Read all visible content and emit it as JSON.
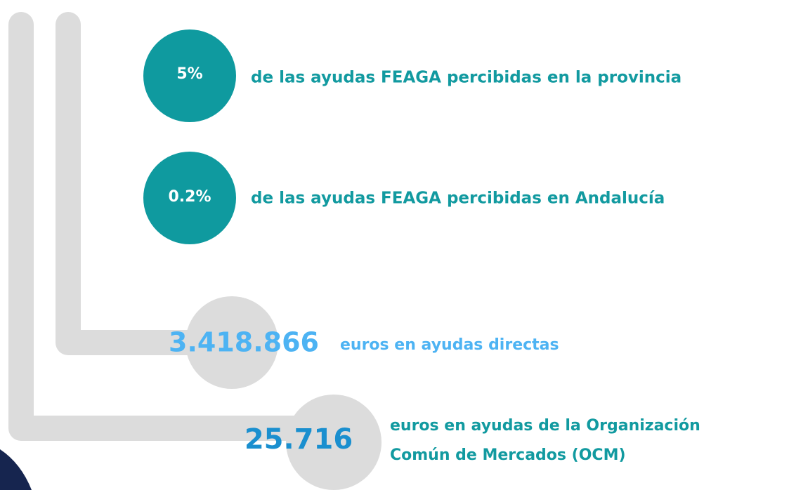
{
  "stats": [
    {
      "value": "5%",
      "text": "de las ayudas FEAGA percibidas en la provincia"
    },
    {
      "value": "0.2%",
      "text": "de las ayudas FEAGA percibidas en Andalucía"
    },
    {
      "value": "3.418.866",
      "text": "euros en ayudas directas"
    },
    {
      "value": "25.716",
      "lines": [
        "euros en ayudas de la Organización",
        "Común de Mercados (OCM)"
      ]
    }
  ]
}
